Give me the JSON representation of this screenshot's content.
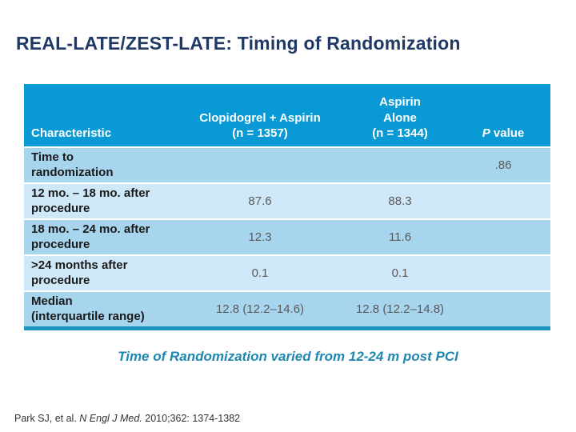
{
  "title": "REAL-LATE/ZEST-LATE: Timing of Randomization",
  "table": {
    "header": {
      "characteristic": "Characteristic",
      "clopidogrel": "Clopidogrel + Aspirin\n(n = 1357)",
      "aspirin": "Aspirin\nAlone\n(n = 1344)",
      "p_italic": "P",
      "p_rest": " value"
    },
    "rows": [
      {
        "label": "Time to\nrandomization",
        "clopidogrel": "",
        "aspirin": "",
        "p": ".86"
      },
      {
        "label": "12 mo. – 18 mo. after\nprocedure",
        "clopidogrel": "87.6",
        "aspirin": "88.3",
        "p": ""
      },
      {
        "label": "18 mo. – 24 mo. after\nprocedure",
        "clopidogrel": "12.3",
        "aspirin": "11.6",
        "p": ""
      },
      {
        "label": ">24 months after\nprocedure",
        "clopidogrel": "0.1",
        "aspirin": "0.1",
        "p": ""
      },
      {
        "label": "Median\n(interquartile range)",
        "clopidogrel": "12.8 (12.2–14.6)",
        "aspirin": "12.8 (12.2–14.8)",
        "p": ""
      }
    ]
  },
  "subtitle": "Time of Randomization varied from 12-24 m post PCI",
  "citation": {
    "prefix": "Park SJ, et al. ",
    "journal": "N Engl J Med.",
    "suffix": " 2010;362: 1374-1382"
  },
  "colors": {
    "header-bg": "#0999D4",
    "row-dark": "#A8D5EE",
    "row-light": "#CFE8F7",
    "accent-border": "#1D95BC",
    "title-color": "#1F3864",
    "subtitle-color": "#1E87B2"
  }
}
